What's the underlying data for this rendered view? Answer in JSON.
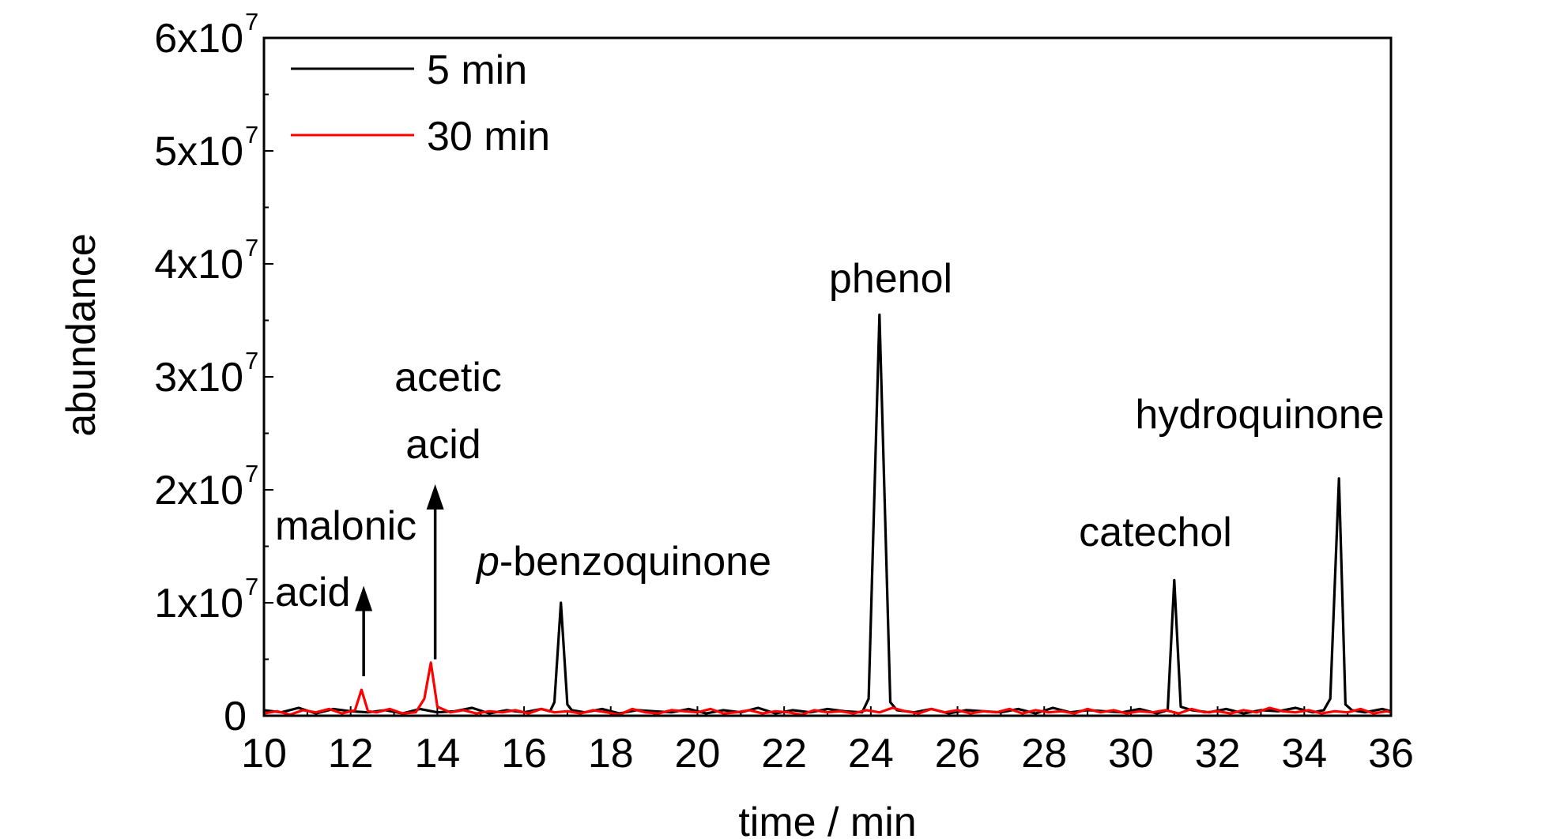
{
  "chart_data": {
    "type": "line",
    "title": "",
    "xlabel": "time / min",
    "ylabel": "abundance",
    "xlim": [
      10,
      36
    ],
    "ylim": [
      0,
      60000000
    ],
    "x_ticks": [
      10,
      12,
      14,
      16,
      18,
      20,
      22,
      24,
      26,
      28,
      30,
      32,
      34,
      36
    ],
    "x_tick_labels": [
      "10",
      "12",
      "14",
      "16",
      "18",
      "20",
      "22",
      "24",
      "26",
      "28",
      "30",
      "32",
      "34",
      "36"
    ],
    "y_ticks": [
      0,
      10000000,
      20000000,
      30000000,
      40000000,
      50000000,
      60000000
    ],
    "y_tick_labels": [
      {
        "mantissa": "0",
        "exponent": ""
      },
      {
        "mantissa": "1x10",
        "exponent": "7"
      },
      {
        "mantissa": "2x10",
        "exponent": "7"
      },
      {
        "mantissa": "3x10",
        "exponent": "7"
      },
      {
        "mantissa": "4x10",
        "exponent": "7"
      },
      {
        "mantissa": "5x10",
        "exponent": "7"
      },
      {
        "mantissa": "6x10",
        "exponent": "7"
      }
    ],
    "grid": false,
    "legend_position": "top-left",
    "series": [
      {
        "name": "5 min",
        "color": "#000000",
        "x": [
          10.0,
          10.4,
          10.8,
          11.2,
          11.6,
          12.0,
          12.4,
          12.8,
          13.2,
          13.6,
          14.0,
          14.4,
          14.8,
          15.2,
          15.6,
          16.0,
          16.4,
          16.6,
          16.7,
          16.85,
          17.0,
          17.1,
          17.4,
          17.8,
          18.2,
          18.6,
          19.0,
          19.4,
          19.8,
          20.2,
          20.6,
          21.0,
          21.4,
          21.8,
          22.2,
          22.6,
          23.0,
          23.4,
          23.8,
          23.95,
          24.2,
          24.45,
          24.6,
          25.0,
          25.4,
          25.8,
          26.2,
          26.6,
          27.0,
          27.4,
          27.8,
          28.2,
          28.6,
          29.0,
          29.4,
          29.8,
          30.2,
          30.6,
          30.85,
          31.0,
          31.15,
          31.4,
          31.8,
          32.2,
          32.6,
          33.0,
          33.4,
          33.8,
          34.2,
          34.45,
          34.6,
          34.8,
          34.95,
          35.1,
          35.4,
          35.8,
          36.0
        ],
        "values": [
          500000,
          300000,
          700000,
          200000,
          600000,
          400000,
          300000,
          500000,
          200000,
          600000,
          300000,
          400000,
          700000,
          200000,
          500000,
          300000,
          600000,
          400000,
          1200000,
          10000000,
          1000000,
          500000,
          300000,
          600000,
          200000,
          500000,
          400000,
          300000,
          600000,
          200000,
          500000,
          300000,
          700000,
          200000,
          500000,
          300000,
          600000,
          400000,
          300000,
          1500000,
          35500000,
          1200000,
          500000,
          300000,
          600000,
          200000,
          500000,
          400000,
          300000,
          600000,
          200000,
          700000,
          300000,
          500000,
          400000,
          300000,
          600000,
          200000,
          500000,
          12000000,
          800000,
          500000,
          300000,
          600000,
          200000,
          500000,
          400000,
          700000,
          300000,
          500000,
          1500000,
          21000000,
          1000000,
          500000,
          300000,
          600000,
          400000
        ]
      },
      {
        "name": "30 min",
        "color": "#ff0000",
        "x": [
          10.0,
          10.3,
          10.6,
          10.9,
          11.2,
          11.5,
          11.8,
          12.1,
          12.25,
          12.4,
          12.6,
          12.9,
          13.2,
          13.5,
          13.7,
          13.85,
          14.0,
          14.3,
          14.6,
          14.9,
          15.2,
          15.5,
          15.8,
          16.1,
          16.4,
          16.7,
          17.0,
          17.3,
          17.6,
          17.9,
          18.2,
          18.5,
          18.8,
          19.1,
          19.4,
          19.7,
          20.0,
          20.3,
          20.6,
          20.9,
          21.2,
          21.5,
          21.8,
          22.1,
          22.4,
          22.7,
          23.0,
          23.3,
          23.6,
          23.9,
          24.2,
          24.5,
          24.8,
          25.1,
          25.4,
          25.7,
          26.0,
          26.3,
          26.6,
          26.9,
          27.2,
          27.5,
          27.8,
          28.1,
          28.4,
          28.7,
          29.0,
          29.3,
          29.6,
          29.9,
          30.2,
          30.5,
          30.8,
          31.1,
          31.4,
          31.7,
          32.0,
          32.3,
          32.6,
          32.9,
          33.2,
          33.5,
          33.8,
          34.1,
          34.4,
          34.7,
          35.0,
          35.3,
          35.6,
          35.9,
          36.0
        ],
        "values": [
          200000,
          400000,
          100000,
          500000,
          300000,
          600000,
          200000,
          500000,
          2300000,
          400000,
          300000,
          600000,
          200000,
          300000,
          1500000,
          4700000,
          800000,
          300000,
          500000,
          200000,
          400000,
          300000,
          500000,
          200000,
          600000,
          300000,
          400000,
          200000,
          500000,
          300000,
          100000,
          600000,
          300000,
          200000,
          500000,
          400000,
          300000,
          600000,
          200000,
          300000,
          500000,
          200000,
          400000,
          300000,
          100000,
          500000,
          300000,
          400000,
          200000,
          500000,
          300000,
          700000,
          400000,
          200000,
          600000,
          300000,
          500000,
          200000,
          400000,
          300000,
          600000,
          200000,
          500000,
          300000,
          400000,
          200000,
          600000,
          300000,
          500000,
          200000,
          400000,
          300000,
          500000,
          200000,
          600000,
          300000,
          400000,
          200000,
          500000,
          300000,
          700000,
          400000,
          300000,
          500000,
          200000,
          400000,
          300000,
          600000,
          200000,
          400000,
          300000
        ]
      }
    ],
    "annotations": [
      {
        "id": "malonic",
        "lines": [
          "malonic",
          "acid"
        ],
        "arrow": {
          "x": 12.3,
          "y_from": 3500000,
          "y_to": 11500000
        }
      },
      {
        "id": "acetic",
        "lines": [
          "acetic",
          "acid"
        ],
        "arrow": {
          "x": 13.95,
          "y_from": 5000000,
          "y_to": 20500000
        }
      },
      {
        "id": "benzoquinone",
        "italic_prefix": "p",
        "rest": "-benzoquinone"
      },
      {
        "id": "phenol",
        "lines": [
          "phenol"
        ]
      },
      {
        "id": "catechol",
        "lines": [
          "catechol"
        ]
      },
      {
        "id": "hydroquinone",
        "lines": [
          "hydroquinone"
        ]
      }
    ]
  }
}
